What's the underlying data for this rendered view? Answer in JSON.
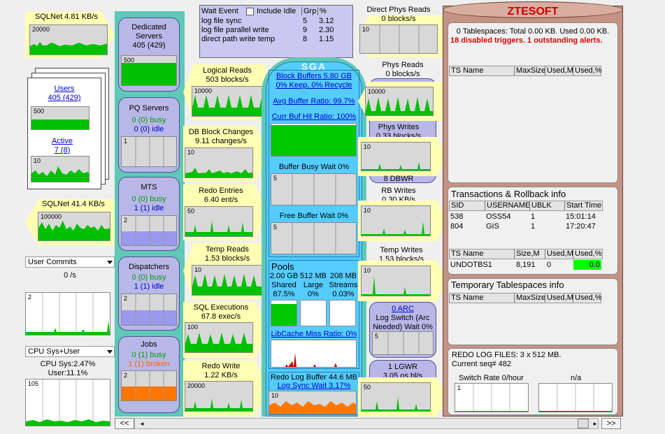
{
  "sqlnet_in": {
    "label": "SQLNet  4.81 KB/s",
    "graph_max": "20000"
  },
  "sqlnet_out": {
    "label": "SQLNet  41.4 KB/s",
    "graph_max": "100000"
  },
  "users": {
    "label": "Users",
    "value": "405 (429)",
    "graph_max": "500",
    "active_label": "Active",
    "active_value": "7 (8)",
    "active_max": "10"
  },
  "user_commits": {
    "select": "User Commits",
    "rate": "0 /s",
    "graph_max": "2"
  },
  "cpu": {
    "select": "CPU Sys+User",
    "sys": "CPU Sys:2.47%",
    "user": "User:11.1%",
    "graph_max": "105"
  },
  "dedicated": {
    "title": "Dedicated Servers",
    "value": "405 (429)",
    "graph_max": "500"
  },
  "pq": {
    "title": "PQ Servers",
    "busy": "0 (0) busy",
    "idle": "0 (0) idle",
    "graph_max": "1"
  },
  "mts": {
    "title": "MTS",
    "busy": "0 (0) busy",
    "idle": "1 (1) idle",
    "graph_max": "2"
  },
  "dispatchers": {
    "title": "Dispatchers",
    "busy": "0 (0) busy",
    "idle": "1 (1) idle",
    "graph_max": "2"
  },
  "jobs": {
    "title": "Jobs",
    "busy": "0 (1) busy",
    "broken": "1 (1) broken",
    "graph_max": "2"
  },
  "wait_events": {
    "header": "Wait Event",
    "include_idle": "Include Idle",
    "grp": "Grp",
    "pct": "%",
    "rows": [
      {
        "event": "log file sync",
        "grp": "5",
        "pct": "3.12"
      },
      {
        "event": "log file parallel write",
        "grp": "9",
        "pct": "2.30"
      },
      {
        "event": "direct path write temp",
        "grp": "8",
        "pct": "1.15"
      }
    ]
  },
  "logical_reads": {
    "label": "Logical Reads",
    "value": "503 blocks/s",
    "graph_max": "10000"
  },
  "db_block_changes": {
    "label": "DB Block Changes",
    "value": "9.11 changes/s",
    "graph_max": "10"
  },
  "redo_entries": {
    "label": "Redo Entries",
    "value": "6.40 ent/s",
    "graph_max": "50"
  },
  "temp_reads": {
    "label": "Temp Reads",
    "value": "1.53 blocks/s",
    "graph_max": "10"
  },
  "sql_executions": {
    "label": "SQL Executions",
    "value": "67.8 exec/s",
    "graph_max": "100"
  },
  "redo_write": {
    "label": "Redo Write",
    "value": "1.22 KB/s",
    "graph_max": "20000"
  },
  "sga": {
    "title": "SGA",
    "block_buffers": "Block Buffers  5.80 GB",
    "keep_recycle": "0% Keep, 0% Recycle",
    "avg_buffer_ratio": "Avg Buffer Ratio: 99.7%",
    "curr_buf_hit": "Curr Buf Hit Ratio: 100%",
    "buffer_busy_wait": "Buffer Busy Wait  0%",
    "buffer_busy_max": "5",
    "free_buffer_wait": "Free Buffer Wait  0%",
    "free_buffer_max": "5",
    "pools_title": "Pools",
    "pools": [
      {
        "size": "2.00 GB",
        "name": "Shared",
        "pct": "87.5%",
        "fill": 0.875
      },
      {
        "size": "512 MB",
        "name": "Large",
        "pct": "0%",
        "fill": 0
      },
      {
        "size": "208 MB",
        "name": "Streams",
        "pct": "0.03%",
        "fill": 0.0003
      }
    ],
    "libcache_miss": "LibCache Miss Ratio: 0%",
    "redo_log_buffer": "Redo Log Buffer  44.6 MB",
    "log_sync_wait": "Log Sync Wait  3.17%",
    "redo_max": "10"
  },
  "direct_phys_reads": {
    "label": "Direct Phys Reads",
    "value": "0 blocks/s",
    "graph_max": "10"
  },
  "phys_reads": {
    "label": "Phys Reads",
    "value": "0 blocks/s",
    "graph_max": "10000"
  },
  "phys_writes": {
    "label": "Phys Writes",
    "value": "0.33 blocks/s",
    "graph_max": "10"
  },
  "dbwr": {
    "label": "8 DBWR",
    "rb": "RB Writes",
    "value": "0.30 KB/s",
    "graph_max": "10"
  },
  "temp_writes": {
    "label": "Temp Writes",
    "value": "1.53 blocks/s",
    "graph_max": "10"
  },
  "arc": {
    "label": "0 ARC",
    "log_switch": "Log Switch (Arc Needed) Wait 0%",
    "graph_max": "5"
  },
  "lgwr": {
    "label": "1 LGWR",
    "value": "3.05 os bl/s",
    "graph_max": "50"
  },
  "db": {
    "brand": "ZTESOFT",
    "tablespaces_summary": "0 Tablespaces: Total 0.00 KB. Used 0.00 KB.",
    "alerts": "18 disabled triggers. 1 outstanding alerts.",
    "ts_headers": [
      "TS Name",
      "MaxSize",
      "Used,M",
      "Used,%"
    ],
    "transactions_title": "Transactions & Rollback info",
    "tx_headers": [
      "SID",
      "USERNAME",
      "UBLK",
      "Start Time"
    ],
    "tx_rows": [
      {
        "sid": "538",
        "user": "OSS54",
        "ublk": "1",
        "start": "15:01:14"
      },
      {
        "sid": "804",
        "user": "GIS",
        "ublk": "1",
        "start": "17:20:47"
      }
    ],
    "undo_headers": [
      "TS Name",
      "Size,M",
      "Used,M",
      "Used,%"
    ],
    "undo_row": {
      "name": "UNDOTBS1",
      "size": "8,191",
      "used": "0",
      "pct": "0.0"
    },
    "temp_title": "Temporary Tablespaces info",
    "temp_headers": [
      "TS Name",
      "MaxSize",
      "Used,M",
      "Used,%"
    ],
    "redo_files": "REDO LOG FILES: 3 x 512 MB.",
    "current_seq": "Current seq# 482",
    "switch_rate": "Switch Rate 0/hour",
    "na": "n/a",
    "switch_max": "1"
  },
  "nav": {
    "prev": "<<",
    "next": ">>"
  },
  "colors": {
    "accent_green": "#00c800",
    "sga_blue": "#55ccff",
    "arrow_yellow": "#ffffb3",
    "pillar": "#b8b8e8",
    "db_brown": "#c49384",
    "brand_red": "#cc0000",
    "broken_orange": "#ff6600",
    "busy_green": "#009900",
    "idle_blue": "#0000cc"
  }
}
